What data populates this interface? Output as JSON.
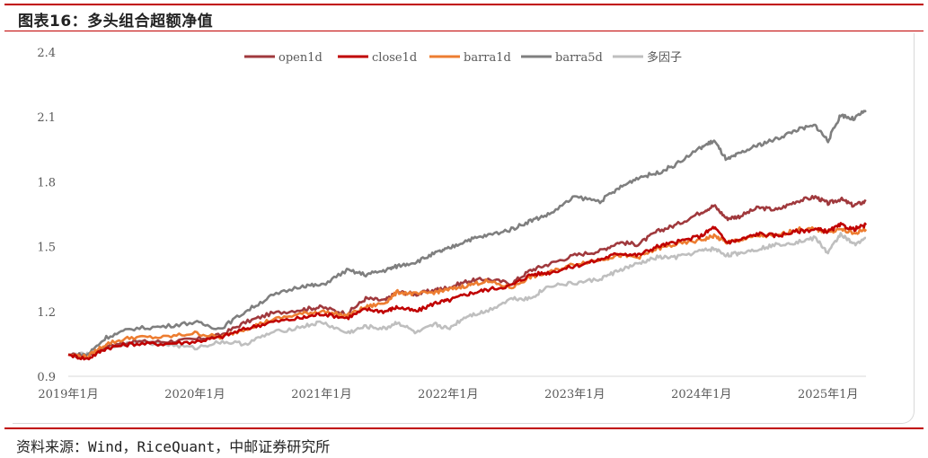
{
  "header": {
    "title": "图表16：多头组合超额净值"
  },
  "footer": {
    "source": "资料来源：Wind，RiceQuant，中邮证券研究所"
  },
  "chart_data": {
    "type": "line",
    "title": "",
    "xlabel": "",
    "ylabel": "",
    "ylim": [
      0.9,
      2.4
    ],
    "yticks": [
      "0.9",
      "1.2",
      "1.5",
      "1.8",
      "2.1",
      "2.4"
    ],
    "xlim": [
      2019.0,
      2025.3
    ],
    "xticks": [
      {
        "x": 2019.0,
        "label": "2019年1月"
      },
      {
        "x": 2020.0,
        "label": "2020年1月"
      },
      {
        "x": 2021.0,
        "label": "2021年1月"
      },
      {
        "x": 2022.0,
        "label": "2022年1月"
      },
      {
        "x": 2023.0,
        "label": "2023年1月"
      },
      {
        "x": 2024.0,
        "label": "2024年1月"
      },
      {
        "x": 2025.0,
        "label": "2025年1月"
      }
    ],
    "grid": false,
    "legend": "top",
    "series": [
      {
        "name": "open1d",
        "color": "#a0393d",
        "x": [
          2019.0,
          2019.15,
          2019.3,
          2019.5,
          2019.75,
          2020.0,
          2020.2,
          2020.4,
          2020.6,
          2020.85,
          2021.0,
          2021.2,
          2021.35,
          2021.5,
          2021.6,
          2021.75,
          2021.9,
          2022.0,
          2022.15,
          2022.3,
          2022.5,
          2022.65,
          2022.8,
          2023.0,
          2023.2,
          2023.35,
          2023.5,
          2023.65,
          2023.8,
          2024.0,
          2024.1,
          2024.2,
          2024.3,
          2024.45,
          2024.6,
          2024.75,
          2024.9,
          2025.0,
          2025.1,
          2025.2,
          2025.3
        ],
        "values": [
          1.0,
          0.99,
          1.04,
          1.06,
          1.06,
          1.07,
          1.09,
          1.15,
          1.19,
          1.21,
          1.22,
          1.19,
          1.26,
          1.25,
          1.29,
          1.28,
          1.3,
          1.31,
          1.34,
          1.35,
          1.33,
          1.39,
          1.42,
          1.46,
          1.48,
          1.52,
          1.51,
          1.57,
          1.6,
          1.66,
          1.69,
          1.63,
          1.64,
          1.68,
          1.67,
          1.71,
          1.73,
          1.7,
          1.72,
          1.69,
          1.71
        ]
      },
      {
        "name": "close1d",
        "color": "#c00000",
        "x": [
          2019.0,
          2019.15,
          2019.3,
          2019.5,
          2019.75,
          2020.0,
          2020.2,
          2020.4,
          2020.6,
          2020.85,
          2021.0,
          2021.2,
          2021.35,
          2021.5,
          2021.6,
          2021.75,
          2021.9,
          2022.0,
          2022.15,
          2022.3,
          2022.5,
          2022.65,
          2022.8,
          2023.0,
          2023.2,
          2023.35,
          2023.5,
          2023.65,
          2023.8,
          2024.0,
          2024.1,
          2024.2,
          2024.3,
          2024.45,
          2024.6,
          2024.75,
          2024.9,
          2025.0,
          2025.1,
          2025.2,
          2025.3
        ],
        "values": [
          1.0,
          0.98,
          1.03,
          1.05,
          1.05,
          1.06,
          1.08,
          1.12,
          1.15,
          1.17,
          1.19,
          1.17,
          1.21,
          1.2,
          1.22,
          1.2,
          1.24,
          1.25,
          1.28,
          1.3,
          1.32,
          1.37,
          1.38,
          1.41,
          1.44,
          1.47,
          1.46,
          1.5,
          1.52,
          1.55,
          1.59,
          1.52,
          1.53,
          1.56,
          1.55,
          1.57,
          1.58,
          1.57,
          1.6,
          1.58,
          1.6
        ]
      },
      {
        "name": "barra1d",
        "color": "#ed7d31",
        "x": [
          2019.0,
          2019.15,
          2019.3,
          2019.5,
          2019.75,
          2020.0,
          2020.2,
          2020.4,
          2020.6,
          2020.85,
          2021.0,
          2021.2,
          2021.35,
          2021.5,
          2021.6,
          2021.75,
          2021.9,
          2022.0,
          2022.15,
          2022.3,
          2022.5,
          2022.65,
          2022.8,
          2023.0,
          2023.2,
          2023.35,
          2023.5,
          2023.65,
          2023.8,
          2024.0,
          2024.1,
          2024.2,
          2024.3,
          2024.45,
          2024.6,
          2024.75,
          2024.9,
          2025.0,
          2025.1,
          2025.2,
          2025.3
        ],
        "values": [
          1.0,
          0.99,
          1.05,
          1.08,
          1.08,
          1.1,
          1.08,
          1.12,
          1.16,
          1.19,
          1.2,
          1.18,
          1.22,
          1.24,
          1.29,
          1.28,
          1.29,
          1.3,
          1.32,
          1.34,
          1.31,
          1.36,
          1.38,
          1.42,
          1.44,
          1.46,
          1.45,
          1.49,
          1.51,
          1.53,
          1.55,
          1.52,
          1.53,
          1.55,
          1.55,
          1.58,
          1.58,
          1.57,
          1.58,
          1.56,
          1.58
        ]
      },
      {
        "name": "barra5d",
        "color": "#7f7f7f",
        "x": [
          2019.0,
          2019.15,
          2019.3,
          2019.5,
          2019.75,
          2020.0,
          2020.2,
          2020.4,
          2020.6,
          2020.85,
          2021.0,
          2021.2,
          2021.35,
          2021.5,
          2021.6,
          2021.75,
          2021.9,
          2022.0,
          2022.15,
          2022.3,
          2022.5,
          2022.65,
          2022.8,
          2023.0,
          2023.2,
          2023.35,
          2023.5,
          2023.65,
          2023.8,
          2024.0,
          2024.1,
          2024.2,
          2024.3,
          2024.45,
          2024.6,
          2024.75,
          2024.9,
          2025.0,
          2025.1,
          2025.2,
          2025.3
        ],
        "values": [
          1.0,
          1.0,
          1.08,
          1.12,
          1.13,
          1.15,
          1.12,
          1.2,
          1.27,
          1.32,
          1.32,
          1.39,
          1.37,
          1.39,
          1.41,
          1.43,
          1.47,
          1.49,
          1.53,
          1.55,
          1.58,
          1.62,
          1.65,
          1.73,
          1.71,
          1.77,
          1.82,
          1.84,
          1.88,
          1.96,
          1.99,
          1.9,
          1.93,
          1.97,
          2.0,
          2.04,
          2.06,
          1.99,
          2.11,
          2.09,
          2.13
        ]
      },
      {
        "name": "多因子",
        "color": "#bfbfbf",
        "x": [
          2019.0,
          2019.15,
          2019.3,
          2019.5,
          2019.75,
          2020.0,
          2020.2,
          2020.4,
          2020.6,
          2020.85,
          2021.0,
          2021.2,
          2021.35,
          2021.5,
          2021.6,
          2021.75,
          2021.9,
          2022.0,
          2022.15,
          2022.3,
          2022.5,
          2022.65,
          2022.8,
          2023.0,
          2023.2,
          2023.35,
          2023.5,
          2023.65,
          2023.8,
          2024.0,
          2024.1,
          2024.2,
          2024.3,
          2024.45,
          2024.6,
          2024.75,
          2024.9,
          2025.0,
          2025.1,
          2025.2,
          2025.3
        ],
        "values": [
          1.0,
          1.0,
          1.03,
          1.06,
          1.05,
          1.03,
          1.06,
          1.05,
          1.1,
          1.13,
          1.15,
          1.1,
          1.13,
          1.12,
          1.15,
          1.1,
          1.14,
          1.12,
          1.18,
          1.2,
          1.26,
          1.26,
          1.32,
          1.33,
          1.35,
          1.39,
          1.42,
          1.45,
          1.45,
          1.48,
          1.49,
          1.46,
          1.47,
          1.49,
          1.51,
          1.52,
          1.54,
          1.47,
          1.56,
          1.51,
          1.54
        ]
      }
    ]
  }
}
